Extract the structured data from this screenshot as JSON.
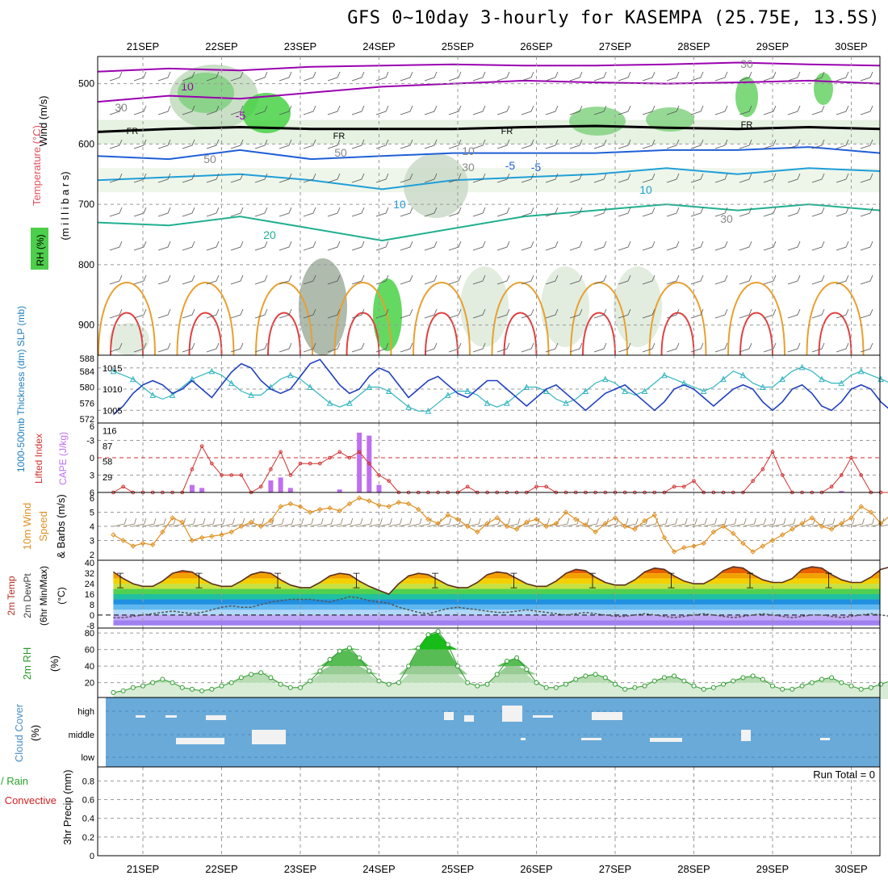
{
  "title": "GFS 0~10day 3-hourly for KASEMPA (25.75E, 13.5S)",
  "colors": {
    "frame": "#000000",
    "grid": "#9a9a9a",
    "cloud_bg": "#6aaad8",
    "slp": "#1f3fbf",
    "thick": "#33b5c0",
    "li": "#d23030",
    "cape": "#bf6ff0",
    "wind": "#e09020",
    "rh2m": "#2a9a2a",
    "t_hot": "#cc2a00",
    "temp_minus": "#9a00b0",
    "temp_zero": "#000000"
  },
  "chart_data": [
    {
      "type": "heatmap",
      "name_key": "upper",
      "x_ticks": [
        "21SEP",
        "22SEP",
        "23SEP",
        "24SEP",
        "25SEP",
        "26SEP",
        "27SEP",
        "28SEP",
        "29SEP",
        "30SEP"
      ],
      "ylabel_parts": [
        "Wind (m/s)",
        "Temperature (°C)",
        "(m i l l i b a r s)",
        "RH (%)"
      ],
      "y_ticks": [
        500,
        600,
        700,
        800,
        900
      ],
      "contour_labels": [
        "10",
        "-5",
        "FR",
        "FR",
        "FR",
        "FR",
        "-5",
        "-5",
        "10",
        "10",
        "20",
        "30",
        "30",
        "50",
        "50",
        "30",
        "10",
        "30"
      ],
      "isotherms": [
        {
          "label": "-10",
          "values": [
            480,
            475,
            478,
            472,
            470,
            468,
            470,
            470,
            468,
            465,
            468,
            470
          ]
        },
        {
          "label": "-5",
          "values": [
            530,
            520,
            525,
            515,
            505,
            500,
            495,
            498,
            500,
            498,
            495,
            500
          ]
        },
        {
          "label": "FR",
          "values": [
            580,
            575,
            572,
            575,
            575,
            575,
            572,
            570,
            573,
            575,
            572,
            575
          ]
        },
        {
          "label": "5",
          "values": [
            620,
            625,
            610,
            625,
            620,
            615,
            615,
            615,
            610,
            610,
            605,
            615
          ]
        },
        {
          "label": "10",
          "values": [
            660,
            655,
            650,
            660,
            675,
            660,
            655,
            650,
            640,
            650,
            640,
            645
          ]
        },
        {
          "label": "20",
          "values": [
            730,
            735,
            720,
            740,
            760,
            740,
            720,
            710,
            700,
            710,
            700,
            710
          ]
        }
      ]
    },
    {
      "type": "line",
      "name_key": "slp",
      "ylabel": "1000-500mb Thickness (dm) SLP (mb)",
      "left_ticks": [
        "588",
        "584",
        "580",
        "576",
        "572"
      ],
      "right_ticks": [
        "1015",
        "1010",
        "1005"
      ],
      "series": [
        {
          "name": "SLP",
          "unit": "mb",
          "values": [
            1004,
            1006,
            1009,
            1011,
            1012,
            1011,
            1009,
            1010,
            1012,
            1010,
            1008,
            1011,
            1014,
            1016,
            1015,
            1012,
            1010,
            1009,
            1010,
            1013,
            1016,
            1017,
            1014,
            1011,
            1009,
            1010,
            1013,
            1015,
            1014,
            1011,
            1008,
            1010,
            1012,
            1013,
            1011,
            1009,
            1008,
            1010,
            1012,
            1012,
            1010,
            1008,
            1006,
            1008,
            1010,
            1011,
            1009,
            1007,
            1005,
            1007,
            1009,
            1010,
            1011,
            1009,
            1007,
            1005,
            1007,
            1010,
            1011,
            1010,
            1008,
            1006,
            1008,
            1010,
            1011,
            1010,
            1007,
            1005,
            1007,
            1010,
            1011,
            1009,
            1006,
            1005,
            1007,
            1010,
            1011,
            1010,
            1007,
            1005,
            1008
          ]
        },
        {
          "name": "Thickness",
          "unit": "dm",
          "values": [
            584,
            583,
            582,
            580,
            578,
            577,
            578,
            580,
            582,
            583,
            584,
            583,
            581,
            579,
            578,
            578,
            580,
            582,
            583,
            582,
            580,
            578,
            576,
            575,
            576,
            578,
            580,
            580,
            579,
            577,
            575,
            574,
            574,
            576,
            578,
            579,
            579,
            578,
            576,
            575,
            576,
            578,
            580,
            580,
            579,
            577,
            576,
            577,
            579,
            581,
            582,
            581,
            579,
            578,
            579,
            581,
            583,
            582,
            581,
            580,
            579,
            580,
            582,
            584,
            583,
            581,
            580,
            580,
            582,
            584,
            585,
            584,
            582,
            581,
            581,
            583,
            584,
            583,
            582,
            581,
            580
          ]
        }
      ]
    },
    {
      "type": "bar",
      "name_key": "cape",
      "ylabel": "Lifted Index CAPE (J/kg)",
      "left_ticks": [
        "6",
        "-3",
        "0",
        "3",
        "6"
      ],
      "right_ticks": [
        "116",
        "87",
        "58",
        "29"
      ],
      "series": [
        {
          "name": "CAPE",
          "unit": "J/kg",
          "values": [
            0,
            0,
            0,
            0,
            0,
            0,
            0,
            0,
            5,
            3,
            0,
            0,
            0,
            0,
            0,
            0,
            8,
            10,
            3,
            0,
            0,
            0,
            0,
            2,
            0,
            40,
            38,
            5,
            0,
            0,
            0,
            0,
            0,
            0,
            0,
            0,
            0,
            0,
            0,
            0,
            0,
            0,
            0,
            0,
            0,
            0,
            0,
            0,
            0,
            0,
            0,
            0,
            0,
            0,
            0,
            0,
            0,
            0,
            0,
            0,
            0,
            0,
            0,
            0,
            0,
            0,
            0,
            0,
            0,
            0,
            0,
            0,
            0,
            0,
            1,
            0,
            0,
            0,
            0,
            0,
            0
          ]
        },
        {
          "name": "Lifted Index",
          "unit": "",
          "values": [
            6,
            5,
            6,
            6,
            6,
            6,
            6,
            6,
            2,
            -2,
            1,
            3,
            3,
            3,
            6,
            5,
            2,
            -1,
            3,
            1,
            1,
            1,
            0,
            -1,
            0,
            -1,
            1,
            3,
            4,
            6,
            6,
            6,
            6,
            6,
            6,
            6,
            5,
            6,
            6,
            6,
            6,
            6,
            6,
            5,
            5,
            6,
            6,
            6,
            6,
            6,
            6,
            6,
            6,
            6,
            6,
            6,
            6,
            5,
            5,
            4,
            6,
            6,
            6,
            6,
            6,
            4,
            2,
            -1,
            3,
            6,
            6,
            6,
            6,
            5,
            3,
            0,
            3,
            6,
            6,
            6,
            5
          ]
        }
      ]
    },
    {
      "type": "line",
      "name_key": "wind",
      "ylabel": "10m Wind Speed & Barbs (m/s)",
      "left_ticks": [
        "6",
        "5",
        "4",
        "3",
        "2"
      ],
      "series": [
        {
          "name": "Wind speed",
          "unit": "m/s",
          "values": [
            3.4,
            3.0,
            2.6,
            2.8,
            2.7,
            3.6,
            4.6,
            4.3,
            3.0,
            3.2,
            3.3,
            3.4,
            3.6,
            4.0,
            4.3,
            4.0,
            4.4,
            5.4,
            5.6,
            5.4,
            5.0,
            5.2,
            5.3,
            5.1,
            5.6,
            6.0,
            5.8,
            5.5,
            5.4,
            5.7,
            5.6,
            5.2,
            4.5,
            4.2,
            4.8,
            4.5,
            4.0,
            3.6,
            4.2,
            4.6,
            4.0,
            3.8,
            4.3,
            4.5,
            4.0,
            4.2,
            5.0,
            4.5,
            4.1,
            3.6,
            4.2,
            4.6,
            4.0,
            3.8,
            4.4,
            4.8,
            3.2,
            2.2,
            2.5,
            2.6,
            2.8,
            3.6,
            4.0,
            3.5,
            2.8,
            2.2,
            2.6,
            3.0,
            3.4,
            3.8,
            4.2,
            4.6,
            4.0,
            3.8,
            4.2,
            4.6,
            5.4,
            5.0,
            4.2,
            4.8,
            5.2
          ]
        }
      ]
    },
    {
      "type": "area",
      "name_key": "temp",
      "ylabel": "2m Temp 2m DewPt (6hr Min/Max) (°C)",
      "left_ticks": [
        "40",
        "32",
        "24",
        "16",
        "8",
        "0",
        "-8"
      ],
      "series": [
        {
          "name": "2m Temp",
          "unit": "°C",
          "values": [
            33,
            28,
            24,
            22,
            22,
            26,
            32,
            34,
            33,
            28,
            24,
            22,
            22,
            26,
            31,
            33,
            32,
            27,
            23,
            21,
            21,
            25,
            30,
            32,
            31,
            26,
            22,
            19,
            16,
            24,
            30,
            32,
            31,
            27,
            23,
            21,
            21,
            25,
            31,
            33,
            32,
            28,
            24,
            22,
            22,
            26,
            32,
            35,
            34,
            29,
            25,
            23,
            23,
            27,
            33,
            36,
            35,
            30,
            26,
            24,
            24,
            28,
            34,
            37,
            36,
            31,
            27,
            25,
            25,
            28,
            35,
            37,
            36,
            31,
            27,
            25,
            25,
            29,
            35,
            37,
            36
          ]
        },
        {
          "name": "2m DewPt",
          "unit": "°C",
          "values": [
            -2,
            -2,
            -1,
            0,
            1,
            2,
            3,
            2,
            1,
            2,
            4,
            6,
            7,
            6,
            6,
            8,
            10,
            11,
            12,
            12,
            12,
            11,
            10,
            12,
            14,
            13,
            11,
            10,
            9,
            6,
            4,
            2,
            1,
            3,
            5,
            6,
            5,
            4,
            3,
            2,
            2,
            3,
            4,
            3,
            2,
            1,
            0,
            1,
            2,
            1,
            0,
            -1,
            -1,
            0,
            1,
            0,
            -1,
            -2,
            -1,
            0,
            1,
            0,
            -1,
            -2,
            -1,
            0,
            1,
            0,
            -1,
            -2,
            -1,
            0,
            0,
            -1,
            -2,
            -1,
            0,
            1,
            0,
            -1,
            -1
          ]
        }
      ]
    },
    {
      "type": "area",
      "name_key": "rh",
      "ylabel": "2m RH (%)",
      "left_ticks": [
        "80",
        "60",
        "40",
        "20"
      ],
      "series": [
        {
          "name": "2m RH",
          "unit": "%",
          "values": [
            8,
            10,
            14,
            16,
            20,
            24,
            20,
            14,
            12,
            10,
            12,
            16,
            20,
            26,
            30,
            32,
            26,
            18,
            14,
            14,
            22,
            34,
            48,
            58,
            62,
            50,
            34,
            22,
            18,
            20,
            40,
            62,
            78,
            82,
            66,
            40,
            20,
            16,
            18,
            30,
            46,
            50,
            36,
            20,
            14,
            14,
            18,
            24,
            28,
            30,
            26,
            18,
            12,
            14,
            16,
            22,
            26,
            28,
            22,
            16,
            12,
            14,
            18,
            22,
            26,
            28,
            24,
            16,
            12,
            12,
            16,
            20,
            24,
            26,
            20,
            16,
            12,
            14,
            18,
            22,
            24
          ]
        }
      ]
    },
    {
      "type": "heatmap",
      "name_key": "cloud",
      "ylabel": "Cloud Cover (%)",
      "left_ticks": [
        "high",
        "middle",
        "low"
      ]
    },
    {
      "type": "bar",
      "name_key": "precip",
      "ylabel_parts": [
        "Total / Rain",
        "Convective",
        "3hr Precip (mm)"
      ],
      "left_ticks": [
        "0.8",
        "0.6",
        "0.4",
        "0.2",
        "0"
      ],
      "annotation": "Run Total = 0",
      "series": [
        {
          "name": "3hr Precip",
          "unit": "mm",
          "values": []
        }
      ]
    }
  ]
}
